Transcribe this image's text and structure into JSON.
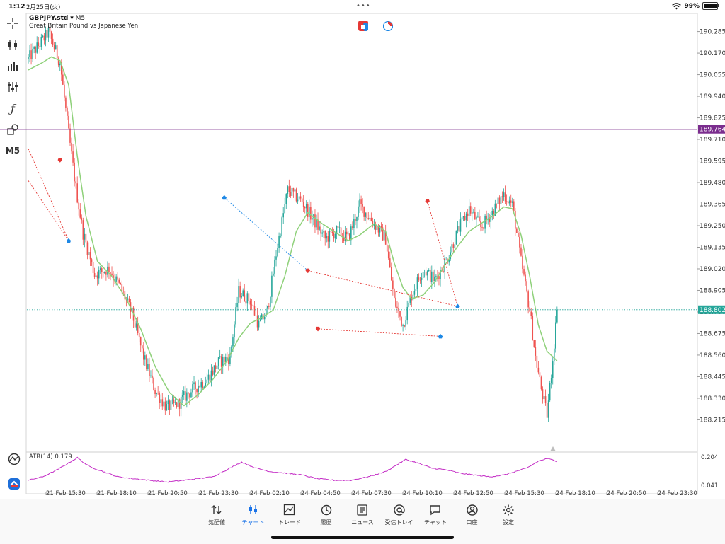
{
  "status_bar": {
    "time": "1:12",
    "date": "2月25日(火)",
    "battery": "99%",
    "more_icon": "ellipsis-icon"
  },
  "chart_header": {
    "symbol": "GBPJPY.std",
    "timeframe_label": "▾ M5",
    "description": "Great Britain Pound vs Japanese Yen"
  },
  "left_toolbar": {
    "items": [
      {
        "name": "crosshair",
        "icon": "crosshair-icon"
      },
      {
        "name": "chart-type",
        "icon": "candlestick-icon"
      },
      {
        "name": "volumes",
        "icon": "bar-chart-icon"
      },
      {
        "name": "indicators-settings",
        "icon": "sliders-icon"
      },
      {
        "name": "indicators",
        "icon": "function-icon"
      },
      {
        "name": "objects",
        "icon": "shapes-icon"
      }
    ],
    "timeframe": "M5"
  },
  "colors": {
    "bull": "#26a69a",
    "bear": "#ef5350",
    "ma": "#8fd17a",
    "hline": "#7b2d8e",
    "bid_line": "#26a69a",
    "atr": "#c32ac5",
    "active_tab": "#1a73e8",
    "trade_buy": "#1e88e5",
    "trade_sell": "#e53935"
  },
  "price_labels": {
    "hline_value": "189.764",
    "current_value": "188.802"
  },
  "atr": {
    "label": "ATR(14) 0.179",
    "scale_top": "0.204",
    "scale_bottom": "0.041"
  },
  "tab_bar": {
    "tabs": [
      {
        "label": "気配値",
        "icon": "arrows-updown-icon",
        "active": false
      },
      {
        "label": "チャート",
        "icon": "candlestick-icon",
        "active": true
      },
      {
        "label": "トレード",
        "icon": "trend-chart-icon",
        "active": false
      },
      {
        "label": "履歴",
        "icon": "history-icon",
        "active": false
      },
      {
        "label": "ニュース",
        "icon": "news-icon",
        "active": false
      },
      {
        "label": "受信トレイ",
        "icon": "at-icon",
        "active": false
      },
      {
        "label": "チャット",
        "icon": "chat-bubble-icon",
        "active": false
      },
      {
        "label": "口座",
        "icon": "account-icon",
        "active": false
      },
      {
        "label": "設定",
        "icon": "gear-icon",
        "active": false
      }
    ]
  },
  "chart_data": {
    "type": "candlestick",
    "symbol": "GBPJPY.std",
    "timeframe": "M5",
    "y_ticks": [
      "190.285",
      "190.170",
      "190.055",
      "189.940",
      "189.825",
      "189.710",
      "189.595",
      "189.480",
      "189.365",
      "189.250",
      "189.135",
      "189.020",
      "188.905",
      "188.790",
      "188.675",
      "188.560",
      "188.445",
      "188.330",
      "188.215"
    ],
    "x_ticks": [
      "21 Feb 15:30",
      "21 Feb 18:10",
      "21 Feb 20:50",
      "21 Feb 23:30",
      "24 Feb 02:10",
      "24 Feb 04:50",
      "24 Feb 07:30",
      "24 Feb 10:10",
      "24 Feb 12:50",
      "24 Feb 15:30",
      "24 Feb 18:10",
      "24 Feb 20:50",
      "24 Feb 23:30"
    ],
    "ylim": [
      188.16,
      190.34
    ],
    "horizontal_line": 189.764,
    "current_price": 188.802,
    "price_path": [
      [
        0,
        190.14
      ],
      [
        8,
        190.22
      ],
      [
        14,
        190.28
      ],
      [
        22,
        190.12
      ],
      [
        28,
        189.74
      ],
      [
        33,
        189.45
      ],
      [
        38,
        189.21
      ],
      [
        46,
        188.99
      ],
      [
        56,
        189.02
      ],
      [
        64,
        188.92
      ],
      [
        72,
        188.78
      ],
      [
        80,
        188.55
      ],
      [
        88,
        188.37
      ],
      [
        96,
        188.28
      ],
      [
        104,
        188.3
      ],
      [
        110,
        188.35
      ],
      [
        118,
        188.4
      ],
      [
        124,
        188.43
      ],
      [
        132,
        188.52
      ],
      [
        140,
        188.55
      ],
      [
        146,
        188.9
      ],
      [
        154,
        188.85
      ],
      [
        160,
        188.72
      ],
      [
        166,
        188.8
      ],
      [
        172,
        189.1
      ],
      [
        180,
        189.44
      ],
      [
        190,
        189.38
      ],
      [
        198,
        189.28
      ],
      [
        206,
        189.18
      ],
      [
        214,
        189.22
      ],
      [
        222,
        189.18
      ],
      [
        230,
        189.36
      ],
      [
        240,
        189.26
      ],
      [
        248,
        189.18
      ],
      [
        254,
        188.85
      ],
      [
        260,
        188.72
      ],
      [
        266,
        188.88
      ],
      [
        274,
        189.02
      ],
      [
        282,
        188.96
      ],
      [
        290,
        189.06
      ],
      [
        298,
        189.22
      ],
      [
        306,
        189.34
      ],
      [
        314,
        189.24
      ],
      [
        322,
        189.32
      ],
      [
        330,
        189.42
      ],
      [
        336,
        189.36
      ],
      [
        342,
        189.06
      ],
      [
        348,
        188.8
      ],
      [
        352,
        188.55
      ],
      [
        356,
        188.38
      ],
      [
        360,
        188.24
      ],
      [
        364,
        188.54
      ],
      [
        367,
        188.8
      ]
    ],
    "ma_path": [
      [
        0,
        190.08
      ],
      [
        10,
        190.12
      ],
      [
        16,
        190.15
      ],
      [
        22,
        190.13
      ],
      [
        28,
        190.0
      ],
      [
        34,
        189.62
      ],
      [
        40,
        189.3
      ],
      [
        48,
        189.06
      ],
      [
        58,
        188.98
      ],
      [
        68,
        188.86
      ],
      [
        78,
        188.7
      ],
      [
        88,
        188.5
      ],
      [
        98,
        188.36
      ],
      [
        108,
        188.29
      ],
      [
        118,
        188.35
      ],
      [
        128,
        188.43
      ],
      [
        138,
        188.53
      ],
      [
        146,
        188.65
      ],
      [
        154,
        188.73
      ],
      [
        162,
        188.76
      ],
      [
        170,
        188.8
      ],
      [
        178,
        188.98
      ],
      [
        186,
        189.22
      ],
      [
        194,
        189.32
      ],
      [
        204,
        189.26
      ],
      [
        214,
        189.21
      ],
      [
        222,
        189.17
      ],
      [
        230,
        189.2
      ],
      [
        240,
        189.26
      ],
      [
        248,
        189.22
      ],
      [
        254,
        189.05
      ],
      [
        260,
        188.92
      ],
      [
        266,
        188.86
      ],
      [
        274,
        188.88
      ],
      [
        282,
        188.95
      ],
      [
        290,
        189.05
      ],
      [
        298,
        189.14
      ],
      [
        306,
        189.22
      ],
      [
        314,
        189.26
      ],
      [
        322,
        189.3
      ],
      [
        330,
        189.35
      ],
      [
        336,
        189.34
      ],
      [
        342,
        189.2
      ],
      [
        348,
        188.98
      ],
      [
        354,
        188.72
      ],
      [
        360,
        188.58
      ],
      [
        367,
        188.53
      ]
    ],
    "trade_markers": [
      {
        "i": 22,
        "price": 189.6,
        "side": "sell"
      },
      {
        "i": 28,
        "price": 189.17,
        "side": "buy"
      },
      {
        "i": 136,
        "price": 189.4,
        "side": "buy"
      },
      {
        "i": 194,
        "price": 189.01,
        "side": "sell"
      },
      {
        "i": 201,
        "price": 188.7,
        "side": "sell"
      },
      {
        "i": 277,
        "price": 189.38,
        "side": "sell"
      },
      {
        "i": 286,
        "price": 188.66,
        "side": "buy"
      },
      {
        "i": 298,
        "price": 188.82,
        "side": "buy"
      }
    ],
    "trade_lines": [
      {
        "from": [
          0,
          189.66
        ],
        "to": [
          28,
          189.17
        ],
        "color": "sell"
      },
      {
        "from": [
          0,
          189.49
        ],
        "to": [
          28,
          189.17
        ],
        "color": "sell"
      },
      {
        "from": [
          136,
          189.4
        ],
        "to": [
          194,
          189.01
        ],
        "color": "buy"
      },
      {
        "from": [
          194,
          189.01
        ],
        "to": [
          298,
          188.82
        ],
        "color": "sell"
      },
      {
        "from": [
          201,
          188.7
        ],
        "to": [
          286,
          188.66
        ],
        "color": "sell"
      },
      {
        "from": [
          277,
          189.38
        ],
        "to": [
          298,
          188.82
        ],
        "color": "sell"
      }
    ],
    "atr_series": {
      "name": "ATR(14)",
      "last": 0.179,
      "ylim": [
        0.041,
        0.204
      ],
      "path": [
        [
          0,
          0.07
        ],
        [
          10,
          0.09
        ],
        [
          20,
          0.13
        ],
        [
          28,
          0.17
        ],
        [
          34,
          0.2
        ],
        [
          42,
          0.15
        ],
        [
          52,
          0.12
        ],
        [
          62,
          0.09
        ],
        [
          72,
          0.08
        ],
        [
          84,
          0.07
        ],
        [
          96,
          0.06
        ],
        [
          108,
          0.07
        ],
        [
          118,
          0.08
        ],
        [
          128,
          0.09
        ],
        [
          140,
          0.14
        ],
        [
          148,
          0.175
        ],
        [
          158,
          0.14
        ],
        [
          168,
          0.12
        ],
        [
          180,
          0.11
        ],
        [
          190,
          0.1
        ],
        [
          200,
          0.08
        ],
        [
          212,
          0.07
        ],
        [
          224,
          0.07
        ],
        [
          236,
          0.09
        ],
        [
          248,
          0.12
        ],
        [
          256,
          0.16
        ],
        [
          262,
          0.19
        ],
        [
          270,
          0.17
        ],
        [
          280,
          0.14
        ],
        [
          290,
          0.13
        ],
        [
          300,
          0.11
        ],
        [
          310,
          0.1
        ],
        [
          320,
          0.09
        ],
        [
          330,
          0.1
        ],
        [
          338,
          0.12
        ],
        [
          346,
          0.14
        ],
        [
          354,
          0.18
        ],
        [
          360,
          0.195
        ],
        [
          367,
          0.18
        ]
      ]
    }
  }
}
